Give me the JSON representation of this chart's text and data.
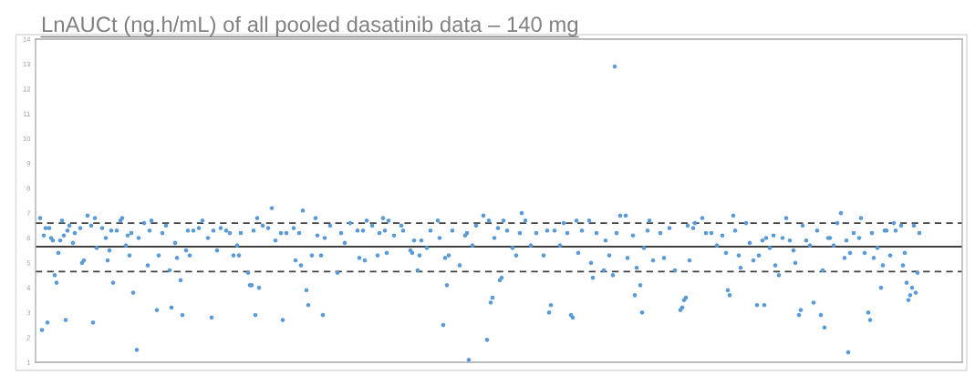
{
  "chart_data": {
    "type": "scatter",
    "title": "LnAUCt (ng.h/mL) of all pooled dasatinib data – 140 mg",
    "categories": [
      null,
      null,
      null,
      null,
      null,
      null,
      null,
      null,
      null,
      null,
      null,
      null,
      null,
      null,
      null,
      null,
      null,
      null,
      null,
      null,
      null,
      null,
      null,
      null,
      null,
      null,
      null,
      null,
      null,
      null,
      null,
      null,
      null,
      null,
      null,
      null,
      null,
      null,
      null,
      null,
      null,
      null,
      null,
      null,
      null,
      null,
      null,
      null,
      null,
      null,
      null,
      null,
      null,
      null,
      null,
      null,
      null,
      null,
      null,
      null,
      null,
      null,
      null,
      null,
      null,
      null,
      null,
      null,
      null,
      null,
      null,
      null,
      null,
      null,
      null,
      null,
      null,
      null,
      null,
      null,
      null,
      null,
      null,
      null,
      null,
      null,
      null,
      null,
      null,
      null,
      null,
      null,
      null,
      null,
      null,
      null,
      null,
      null,
      null,
      null,
      null,
      null,
      null,
      null,
      null,
      null,
      null,
      null,
      null,
      null,
      null,
      null,
      null,
      null,
      null,
      null,
      null,
      null,
      null,
      null,
      null,
      null,
      null,
      null,
      null,
      null,
      null,
      null,
      null,
      null,
      null,
      null,
      null,
      null,
      null,
      null,
      null,
      null,
      null,
      null,
      null,
      null,
      null,
      null,
      null,
      null,
      null,
      null,
      null,
      null,
      null,
      null,
      null,
      null,
      null,
      null,
      null,
      null,
      null,
      null,
      null,
      null,
      null,
      null,
      null,
      null,
      null,
      null,
      null,
      null,
      null,
      null,
      null,
      null,
      null,
      null,
      null,
      null,
      null,
      null,
      null,
      null,
      null,
      null,
      null,
      null,
      null,
      null,
      null,
      null,
      null,
      null,
      null,
      null,
      null,
      null,
      null,
      null,
      null,
      null,
      null,
      null,
      null,
      null,
      null,
      null,
      null,
      null,
      null,
      null,
      null,
      null,
      null,
      null,
      null,
      null,
      null,
      null,
      null,
      null,
      null,
      null,
      null,
      null,
      null,
      null,
      null,
      null,
      null,
      null,
      null,
      null,
      null,
      null,
      null,
      null,
      null,
      null,
      null,
      null,
      null,
      null,
      null,
      null,
      null,
      null,
      null,
      null,
      null,
      null,
      null,
      null,
      null,
      null,
      null,
      null,
      null,
      null,
      null,
      null,
      null,
      null,
      null,
      null,
      null,
      null,
      null,
      null,
      null,
      null,
      null,
      null,
      null,
      null,
      null,
      null,
      null,
      null,
      null,
      null,
      null,
      null,
      null,
      null,
      null,
      null,
      null,
      null,
      null,
      null,
      null,
      null,
      null,
      null,
      null,
      null,
      null,
      null,
      null,
      null,
      null,
      null,
      null,
      null,
      null,
      null,
      null,
      null,
      null,
      null,
      null,
      null,
      null,
      null,
      null,
      null,
      null,
      null,
      null,
      null,
      null,
      null,
      null,
      null,
      null,
      null,
      null,
      null,
      null,
      null,
      null,
      null,
      null,
      null,
      null,
      null,
      null,
      null,
      null,
      null,
      null,
      null,
      null,
      null,
      null,
      null,
      null,
      null,
      null,
      null,
      null,
      null,
      null,
      null,
      null,
      null,
      null,
      null,
      null,
      null,
      null,
      null,
      null,
      null,
      null,
      null,
      null,
      null,
      null,
      null,
      null,
      null,
      null,
      null,
      null,
      null,
      null,
      null,
      null,
      null,
      null,
      null,
      null,
      null,
      null,
      null,
      null,
      null,
      null,
      null,
      null,
      null,
      null,
      null,
      null,
      null,
      null,
      null,
      null,
      null,
      null,
      null,
      null,
      null,
      null,
      null,
      null,
      null,
      null,
      null,
      null,
      null,
      null,
      null,
      null,
      null,
      null,
      null,
      null,
      null,
      null,
      null,
      null,
      null,
      null,
      null,
      null,
      null,
      null,
      null,
      null,
      null,
      null,
      null,
      null,
      null,
      null,
      null,
      null,
      null,
      null,
      null,
      null,
      null,
      null,
      null,
      null,
      null,
      null,
      null,
      null,
      null,
      null,
      null,
      null,
      null,
      null,
      null,
      null,
      null,
      null,
      null,
      null,
      null,
      null,
      null,
      null,
      null,
      null,
      null,
      null,
      null,
      null,
      null,
      null,
      null,
      null,
      null,
      null,
      null,
      null,
      null,
      null,
      null,
      null,
      null,
      null,
      null,
      null,
      null,
      null,
      null,
      null,
      null,
      null,
      null,
      null,
      null,
      null,
      null,
      null,
      null,
      null,
      null,
      null,
      null,
      null,
      null
    ],
    "series": [
      {
        "color": "#5b9bd5",
        "values": [
          null,
          null,
          6.8,
          2.3,
          6.1,
          6.4,
          2.6,
          6.4,
          6.0,
          5.9,
          4.5,
          4.2,
          5.4,
          5.9,
          6.7,
          6.1,
          2.7,
          6.3,
          6.5,
          null,
          5.8,
          6.2,
          null,
          null,
          6.4,
          5.0,
          5.1,
          null,
          6.9,
          null,
          6.5,
          2.6,
          6.8,
          5.6,
          null,
          null,
          6.4,
          null,
          6.0,
          5.1,
          5.5,
          6.3,
          4.2,
          null,
          6.3,
          null,
          6.7,
          6.8,
          null,
          5.7,
          6.1,
          5.3,
          6.2,
          3.8,
          null,
          1.5,
          6.0,
          null,
          null,
          6.6,
          null,
          4.9,
          6.3,
          6.7,
          null,
          null,
          3.1,
          5.3,
          null,
          6.2,
          null,
          6.5,
          null,
          4.7,
          3.2,
          null,
          5.8,
          5.2,
          null,
          4.3,
          2.9,
          null,
          5.5,
          6.3,
          5.3,
          null,
          6.3,
          null,
          null,
          6.4,
          null,
          6.7,
          null,
          null,
          6.0,
          null,
          2.8,
          6.3,
          null,
          5.5,
          null,
          6.4,
          null,
          null,
          6.3,
          null,
          6.2,
          null,
          5.3,
          null,
          5.7,
          5.3,
          6.2,
          null,
          null,
          null,
          4.6,
          4.1,
          4.1,
          6.3,
          2.9,
          6.8,
          4.0,
          null,
          6.5,
          null,
          null,
          6.4,
          null,
          7.2,
          null,
          5.9,
          null,
          null,
          6.2,
          2.7,
          null,
          6.2,
          null,
          null,
          null,
          6.4,
          5.1,
          null,
          6.2,
          4.9,
          7.1,
          null,
          3.9,
          3.3,
          null,
          5.3,
          null,
          6.8,
          6.1,
          null,
          5.3,
          2.9,
          6.0,
          null,
          null,
          6.5,
          null,
          null,
          null,
          4.6,
          null,
          6.2,
          null,
          5.8,
          null,
          null,
          6.6,
          null,
          null,
          null,
          6.3,
          5.2,
          null,
          6.3,
          5.1,
          6.7,
          null,
          null,
          6.5,
          null,
          null,
          5.3,
          6.2,
          null,
          6.8,
          6.3,
          5.4,
          6.7,
          null,
          null,
          6.1,
          null,
          null,
          null,
          6.5,
          6.3,
          null,
          null,
          null,
          5.5,
          5.4,
          5.9,
          null,
          4.7,
          5.3,
          5.9,
          null,
          null,
          5.6,
          null,
          6.3,
          null,
          null,
          null,
          6.7,
          6.0,
          null,
          2.5,
          5.2,
          4.1,
          5.3,
          null,
          6.3,
          null,
          null,
          null,
          4.9,
          null,
          null,
          6.1,
          6.2,
          1.1,
          null,
          5.7,
          null,
          6.5,
          null,
          null,
          null,
          6.9,
          null,
          1.9,
          6.7,
          3.4,
          3.6,
          6.0,
          null,
          6.4,
          4.3,
          4.4,
          6.7,
          null,
          6.3,
          null,
          null,
          5.6,
          null,
          5.3,
          null,
          6.2,
          7.0,
          null,
          6.7,
          null,
          null,
          5.7,
          null,
          null,
          6.2,
          null,
          null,
          null,
          5.3,
          null,
          6.3,
          3.0,
          3.3,
          null,
          6.3,
          null,
          null,
          5.7,
          null,
          6.6,
          null,
          6.2,
          null,
          2.9,
          2.8,
          null,
          6.7,
          5.4,
          null,
          6.3,
          null,
          null,
          null,
          6.7,
          5.0,
          4.4,
          null,
          6.2,
          null,
          null,
          null,
          4.7,
          5.9,
          null,
          5.3,
          null,
          4.5,
          12.9,
          6.2,
          null,
          6.9,
          null,
          null,
          6.9,
          5.2,
          null,
          null,
          6.1,
          3.7,
          4.8,
          null,
          4.1,
          3.0,
          5.6,
          null,
          6.3,
          6.7,
          null,
          5.1,
          null,
          null,
          null,
          6.2,
          null,
          5.2,
          null,
          null,
          6.4,
          null,
          null,
          4.7,
          null,
          null,
          3.1,
          3.2,
          3.5,
          3.6,
          6.5,
          5.1,
          null,
          6.4,
          6.6,
          null,
          null,
          null,
          6.8,
          null,
          6.2,
          null,
          null,
          6.2,
          null,
          null,
          5.7,
          null,
          null,
          6.1,
          null,
          5.4,
          3.9,
          3.7,
          null,
          6.9,
          6.3,
          null,
          5.3,
          4.8,
          null,
          null,
          6.6,
          null,
          5.8,
          null,
          5.1,
          null,
          3.3,
          5.3,
          null,
          5.9,
          3.3,
          6.0,
          null,
          5.6,
          null,
          6.1,
          4.9,
          null,
          4.5,
          null,
          6.0,
          null,
          6.8,
          null,
          5.9,
          null,
          5.5,
          5.0,
          null,
          2.9,
          3.1,
          6.5,
          null,
          5.9,
          null,
          5.7,
          null,
          3.4,
          null,
          6.3,
          null,
          2.9,
          4.7,
          2.4,
          null,
          6.0,
          6.0,
          null,
          5.7,
          null,
          6.6,
          null,
          7.0,
          null,
          5.2,
          5.9,
          1.4,
          5.4,
          null,
          6.2,
          null,
          null,
          6.0,
          6.8,
          null,
          5.4,
          null,
          3.0,
          2.7,
          6.2,
          5.2,
          null,
          5.6,
          null,
          4.0,
          4.9,
          6.3,
          6.3,
          null,
          5.3,
          null,
          6.6,
          6.3,
          null,
          null,
          6.5,
          4.9,
          5.4,
          4.2,
          3.5,
          3.7,
          4.0,
          6.5,
          3.8,
          4.6,
          6.2,
          null,
          null,
          null,
          null,
          null,
          null,
          null,
          null,
          null,
          null,
          null,
          null,
          null,
          null,
          null,
          null,
          null,
          null,
          null,
          null,
          null,
          null,
          null
        ]
      }
    ],
    "ylim": [
      1,
      14
    ],
    "yticks": [
      1,
      2,
      3,
      4,
      5,
      6,
      7,
      8,
      9,
      10,
      11,
      12,
      13,
      14
    ],
    "ref_lines": [
      {
        "axis": "y",
        "value": 6.6,
        "line_style": "dashed",
        "color": "#404040"
      },
      {
        "axis": "y",
        "value": 5.65,
        "line_style": "solid",
        "color": "#404040"
      },
      {
        "axis": "y",
        "value": 4.65,
        "line_style": "dashed",
        "color": "#404040"
      }
    ],
    "marker": "circle",
    "tick_labels": "y"
  }
}
